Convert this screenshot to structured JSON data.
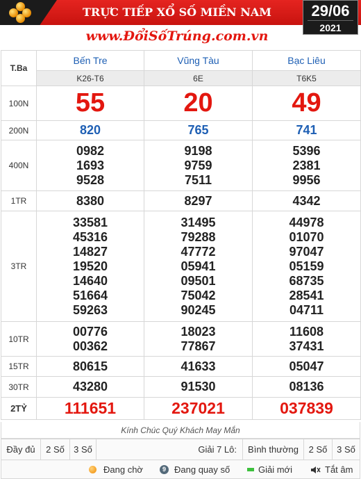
{
  "header": {
    "title": "TRỰC TIẾP XỔ SỐ MIỀN NAM",
    "site": "www.ĐổiSốTrúng.com.vn",
    "date_day": "29/06",
    "date_year": "2021"
  },
  "table": {
    "tba_label": "T.Ba",
    "provinces": [
      {
        "name": "Bến Tre",
        "code": "K26-T6"
      },
      {
        "name": "Vũng Tàu",
        "code": "6E"
      },
      {
        "name": "Bạc Liêu",
        "code": "T6K5"
      }
    ],
    "prizes": [
      {
        "label": "100N",
        "style": "big",
        "values": [
          [
            "55"
          ],
          [
            "20"
          ],
          [
            "49"
          ]
        ]
      },
      {
        "label": "200N",
        "style": "blue",
        "values": [
          [
            "820"
          ],
          [
            "765"
          ],
          [
            "741"
          ]
        ]
      },
      {
        "label": "400N",
        "style": "normal",
        "values": [
          [
            "0982",
            "1693",
            "9528"
          ],
          [
            "9198",
            "9759",
            "7511"
          ],
          [
            "5396",
            "2381",
            "9956"
          ]
        ]
      },
      {
        "label": "1TR",
        "style": "normal",
        "values": [
          [
            "8380"
          ],
          [
            "8297"
          ],
          [
            "4342"
          ]
        ]
      },
      {
        "label": "3TR",
        "style": "normal",
        "values": [
          [
            "33581",
            "45316",
            "14827",
            "19520",
            "14640",
            "51664",
            "59263"
          ],
          [
            "31495",
            "79288",
            "47772",
            "05941",
            "09501",
            "75042",
            "90245"
          ],
          [
            "44978",
            "01070",
            "97047",
            "05159",
            "68735",
            "28541",
            "04711"
          ]
        ]
      },
      {
        "label": "10TR",
        "style": "normal",
        "values": [
          [
            "00776",
            "00362"
          ],
          [
            "18023",
            "77867"
          ],
          [
            "11608",
            "37431"
          ]
        ]
      },
      {
        "label": "15TR",
        "style": "normal",
        "values": [
          [
            "80615"
          ],
          [
            "41633"
          ],
          [
            "05047"
          ]
        ]
      },
      {
        "label": "30TR",
        "style": "normal",
        "values": [
          [
            "43280"
          ],
          [
            "91530"
          ],
          [
            "08136"
          ]
        ]
      },
      {
        "label": "2TỶ",
        "style": "db",
        "values": [
          [
            "111651"
          ],
          [
            "237021"
          ],
          [
            "037839"
          ]
        ]
      }
    ]
  },
  "greeting": "Kính Chúc Quý Khách May Mắn",
  "controls": {
    "full": "Đầy đủ",
    "two_digits": "2 Số",
    "three_digits": "3 Số",
    "g7_label": "Giải 7 Lô:",
    "normal": "Bình thường",
    "two_digits_b": "2 Số",
    "three_digits_b": "3 Số"
  },
  "legend": {
    "waiting": "Đang chờ",
    "spinning": "Đang quay số",
    "new_prize": "Giải mới",
    "mute": "Tắt âm"
  },
  "colors": {
    "red": "#e3170f",
    "blue": "#1e5fb4"
  }
}
